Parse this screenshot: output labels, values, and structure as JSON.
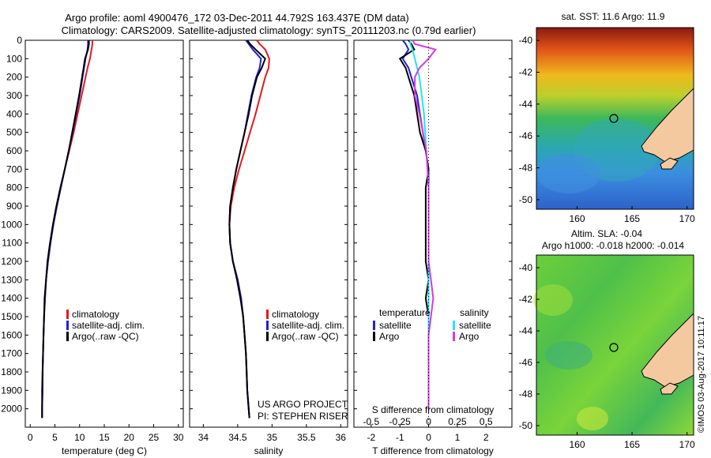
{
  "header": {
    "line1": "Argo profile: aoml 4900476_172 03-Dec-2011 44.792S 163.437E (DM data)",
    "line2": "Climatology: CARS2009. Satellite-adjusted climatology: synTS_20111203.nc (0.79d earlier)"
  },
  "depth_ticks": [
    "0",
    "100",
    "200",
    "300",
    "400",
    "500",
    "600",
    "700",
    "800",
    "900",
    "1000",
    "1100",
    "1200",
    "1300",
    "1400",
    "1500",
    "1600",
    "1700",
    "1800",
    "1900",
    "2000"
  ],
  "colors": {
    "climatology": "#e41a1c",
    "satellite": "#1f1fd6",
    "argo": "#000000",
    "sal_satellite": "#22e5f0",
    "sal_argo": "#d63adc",
    "land": "#f5c9a0",
    "side_text": "#000000"
  },
  "legends": {
    "temp": [
      "climatology",
      "satellite-adj. clim.",
      "Argo(..raw -QC)"
    ],
    "diff": {
      "temp_head": "temperature",
      "sal_head": "salinity",
      "t_sat": "satellite",
      "t_argo": "Argo",
      "s_sat": "satellite",
      "s_argo": "Argo"
    }
  },
  "project": {
    "line1": "US ARGO PROJECT",
    "line2": "PI: STEPHEN RISER"
  },
  "maps": {
    "sst_title": "sat. SST: 11.6 Argo: 11.9",
    "sla_title1": "Altim. SLA: -0.04",
    "sla_title2": "Argo h1000: -0.018 h2000: -0.014",
    "lat_ticks": [
      "-40",
      "-42",
      "-44",
      "-46",
      "-48",
      "-50"
    ],
    "lon_ticks": [
      "160",
      "165",
      "170"
    ],
    "float_position": {
      "lon": 163.437,
      "lat": -44.792
    }
  },
  "side_stamp": "©IMOS 03-Aug-2017 10:11:17",
  "chart_data": [
    {
      "type": "line",
      "panel": "temperature",
      "xlabel": "temperature (deg C)",
      "ylabel": "",
      "xlim": [
        -1,
        31
      ],
      "ylim": [
        2100,
        0
      ],
      "xticks": [
        "0",
        "5",
        "10",
        "15",
        "20",
        "25",
        "30"
      ],
      "depth": [
        0,
        20,
        50,
        100,
        150,
        200,
        300,
        400,
        500,
        600,
        700,
        800,
        900,
        1000,
        1100,
        1200,
        1300,
        1400,
        1500,
        1600,
        1700,
        1800,
        1900,
        2000,
        2050
      ],
      "series": [
        {
          "name": "climatology",
          "values": [
            12.6,
            12.6,
            12.4,
            12.1,
            11.6,
            11.2,
            10.4,
            9.6,
            8.8,
            7.9,
            7.0,
            6.2,
            5.4,
            4.7,
            4.1,
            3.6,
            3.2,
            3.0,
            2.8,
            2.7,
            2.6,
            2.5,
            2.5,
            2.4,
            2.4
          ]
        },
        {
          "name": "satellite-adj. clim.",
          "values": [
            11.7,
            11.7,
            11.6,
            11.2,
            10.9,
            10.6,
            10.0,
            9.3,
            8.6,
            7.8,
            7.0,
            6.2,
            5.4,
            4.7,
            4.1,
            3.6,
            3.2,
            3.0,
            2.8,
            2.7,
            2.6,
            2.5,
            2.5,
            2.4,
            2.4
          ]
        },
        {
          "name": "Argo(..raw -QC)",
          "values": [
            11.9,
            11.9,
            11.7,
            11.1,
            10.8,
            10.5,
            9.9,
            9.2,
            8.5,
            7.8,
            7.0,
            6.1,
            5.3,
            4.6,
            4.0,
            3.5,
            3.2,
            2.9,
            2.8,
            2.7,
            2.6,
            2.5,
            2.4,
            2.4,
            2.4
          ]
        }
      ]
    },
    {
      "type": "line",
      "panel": "salinity",
      "xlabel": "salinity",
      "ylabel": "",
      "xlim": [
        33.8,
        36.1
      ],
      "ylim": [
        2100,
        0
      ],
      "xticks": [
        "34",
        "34.5",
        "35",
        "35.5",
        "36"
      ],
      "depth": [
        0,
        20,
        50,
        100,
        150,
        200,
        300,
        400,
        500,
        600,
        700,
        800,
        900,
        1000,
        1100,
        1200,
        1300,
        1400,
        1500,
        1600,
        1700,
        1800,
        1900,
        2000,
        2050
      ],
      "series": [
        {
          "name": "climatology",
          "values": [
            34.78,
            34.82,
            34.9,
            34.96,
            34.95,
            34.9,
            34.83,
            34.76,
            34.68,
            34.6,
            34.52,
            34.45,
            34.4,
            34.38,
            34.39,
            34.43,
            34.5,
            34.55,
            34.58,
            34.6,
            34.62,
            34.63,
            34.64,
            34.66,
            34.67
          ]
        },
        {
          "name": "satellite-adj. clim.",
          "values": [
            34.62,
            34.66,
            34.72,
            34.84,
            34.82,
            34.77,
            34.7,
            34.65,
            34.6,
            34.54,
            34.48,
            34.43,
            34.39,
            34.38,
            34.39,
            34.43,
            34.5,
            34.55,
            34.58,
            34.6,
            34.62,
            34.63,
            34.64,
            34.66,
            34.67
          ]
        },
        {
          "name": "Argo(..raw -QC)",
          "values": [
            34.64,
            34.68,
            34.76,
            34.9,
            34.85,
            34.78,
            34.71,
            34.66,
            34.6,
            34.54,
            34.48,
            34.43,
            34.39,
            34.38,
            34.39,
            34.43,
            34.49,
            34.54,
            34.58,
            34.6,
            34.62,
            34.63,
            34.64,
            34.66,
            34.67
          ]
        }
      ]
    },
    {
      "type": "line",
      "panel": "difference",
      "xlabel": "T difference from climatology",
      "xlabel_top": "S difference from climatology",
      "ylabel": "",
      "xlim": [
        -2.6,
        2.9
      ],
      "ylim": [
        2100,
        0
      ],
      "xticks": [
        "-2",
        "-1",
        "0",
        "1",
        "2"
      ],
      "sticks": [
        "-0.5",
        "-0.25",
        "0",
        "0.25",
        "0.5"
      ],
      "depth": [
        0,
        20,
        50,
        100,
        150,
        200,
        300,
        400,
        500,
        600,
        700,
        800,
        900,
        1000,
        1100,
        1200,
        1300,
        1400,
        1500,
        1600,
        1700,
        1800,
        1900,
        2000
      ],
      "series": [
        {
          "name": "temperature satellite",
          "values": [
            -0.9,
            -0.8,
            -0.7,
            -0.9,
            -0.7,
            -0.6,
            -0.4,
            -0.3,
            -0.2,
            -0.1,
            0,
            0,
            0,
            0,
            0,
            0,
            0,
            0,
            0,
            0,
            0,
            0,
            0,
            0
          ]
        },
        {
          "name": "temperature Argo",
          "values": [
            -0.7,
            -0.6,
            -0.5,
            -1.0,
            -0.8,
            -0.7,
            -0.5,
            -0.4,
            -0.3,
            -0.1,
            0,
            -0.1,
            -0.1,
            -0.1,
            -0.1,
            -0.1,
            0,
            -0.1,
            0,
            0,
            0,
            0,
            0,
            0
          ]
        },
        {
          "name": "salinity satellite",
          "values": [
            -0.16,
            -0.16,
            -0.14,
            -0.12,
            -0.1,
            -0.08,
            -0.06,
            -0.04,
            -0.03,
            -0.02,
            -0.01,
            0,
            0,
            0,
            0,
            0,
            0,
            0,
            0,
            0,
            0,
            0,
            0,
            0
          ]
        },
        {
          "name": "salinity Argo",
          "values": [
            -0.14,
            -0.12,
            0.06,
            0.0,
            -0.08,
            -0.12,
            -0.12,
            -0.08,
            -0.05,
            -0.02,
            -0.01,
            0,
            0,
            0,
            0,
            0,
            0.02,
            0.04,
            0.02,
            0,
            0,
            0,
            0,
            0
          ]
        }
      ]
    }
  ]
}
